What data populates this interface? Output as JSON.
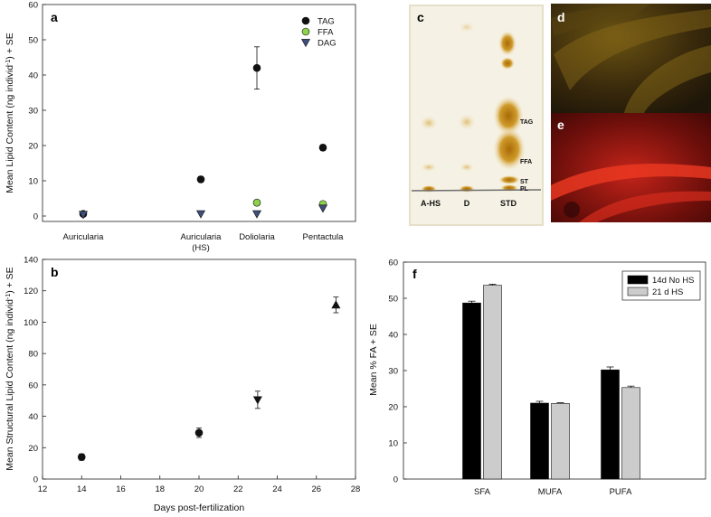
{
  "chart_data": [
    {
      "panel": "a",
      "type": "scatter",
      "ylabel_pre": "Mean Lipid Content (ng individ",
      "ylabel_sup": "-1",
      "ylabel_post": ") + SE",
      "ylim": [
        0,
        60
      ],
      "yticks": [
        0,
        10,
        20,
        30,
        40,
        50,
        60
      ],
      "categories": [
        "Auricularia",
        "Auricularia|(HS)",
        "Doliolaria",
        "Pentactula"
      ],
      "legend_position": "top-right",
      "series": [
        {
          "name": "TAG",
          "marker": "circle",
          "color": "#111111",
          "values": [
            0.6,
            10.4,
            42.0,
            19.4
          ],
          "errors": [
            0.3,
            0.8,
            6.0,
            0.8
          ]
        },
        {
          "name": "FFA",
          "marker": "circle",
          "color": "#8dd24a",
          "values": [
            null,
            null,
            3.8,
            3.4
          ],
          "errors": [
            null,
            null,
            0.5,
            0.5
          ]
        },
        {
          "name": "DAG",
          "marker": "triangle-down",
          "color": "#3d4f7a",
          "values": [
            0.4,
            0.6,
            0.6,
            2.2
          ],
          "errors": [
            0.2,
            0.2,
            0.3,
            0.4
          ]
        }
      ]
    },
    {
      "panel": "b",
      "type": "scatter",
      "ylabel_pre": "Mean Structural Lipid Content (ng individ",
      "ylabel_sup": "-1",
      "ylabel_post": ") + SE",
      "xlabel": "Days post-fertilization",
      "xlim": [
        12,
        28
      ],
      "xticks": [
        12,
        14,
        16,
        18,
        20,
        22,
        24,
        26,
        28
      ],
      "ylim": [
        0,
        140
      ],
      "yticks": [
        0,
        20,
        40,
        60,
        80,
        100,
        120,
        140
      ],
      "points": [
        {
          "x": 14,
          "y": 14,
          "err": 2,
          "marker": "circle"
        },
        {
          "x": 20,
          "y": 29.5,
          "err": 3,
          "marker": "circle"
        },
        {
          "x": 23,
          "y": 50.5,
          "err": 5.5,
          "marker": "triangle-down"
        },
        {
          "x": 27,
          "y": 111,
          "err": 5,
          "marker": "triangle-up"
        }
      ]
    },
    {
      "panel": "f",
      "type": "bar",
      "ylabel": "Mean % FA + SE",
      "ylim": [
        0,
        60
      ],
      "yticks": [
        0,
        10,
        20,
        30,
        40,
        50,
        60
      ],
      "categories": [
        "SFA",
        "MUFA",
        "PUFA"
      ],
      "legend_position": "top-right",
      "series": [
        {
          "name": "14d No HS",
          "color": "#000000",
          "values": [
            48.7,
            21.0,
            30.2
          ],
          "errors": [
            0.5,
            0.5,
            0.8
          ]
        },
        {
          "name": "21 d HS",
          "color": "#cccccc",
          "values": [
            53.6,
            20.9,
            25.3
          ],
          "errors": [
            0.3,
            0.2,
            0.4
          ]
        }
      ]
    }
  ],
  "plate": {
    "letter": "c",
    "lanes": [
      "A-HS",
      "D",
      "STD"
    ],
    "bands": [
      "TAG",
      "FFA",
      "ST",
      "PL"
    ]
  },
  "photos": [
    {
      "letter": "d"
    },
    {
      "letter": "e"
    }
  ]
}
